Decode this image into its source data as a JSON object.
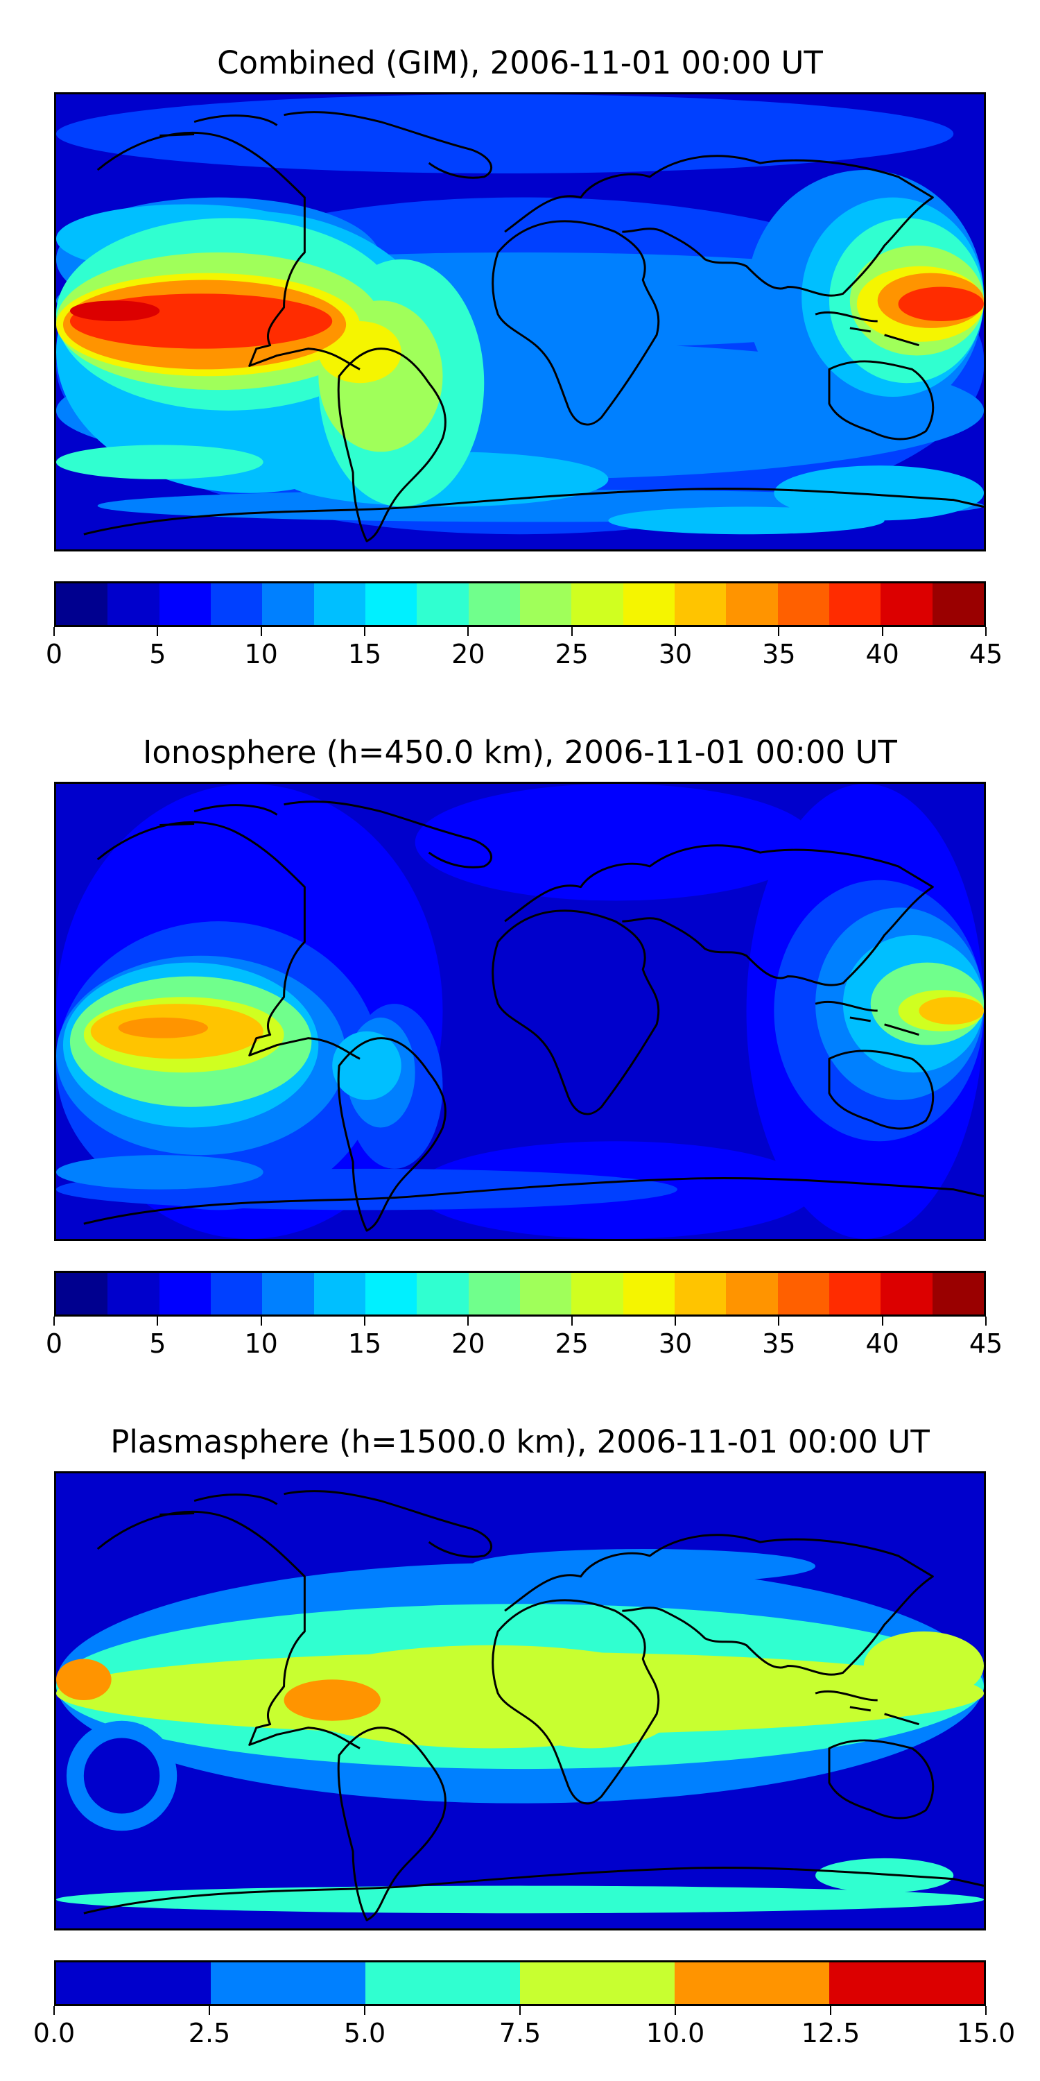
{
  "panels": [
    {
      "title": "Combined (GIM), 2006-11-01 00:00 UT",
      "colorbar_ticks": [
        "0",
        "5",
        "10",
        "15",
        "20",
        "25",
        "30",
        "35",
        "40",
        "45"
      ],
      "colorbar_colors": [
        "#00008f",
        "#0000cc",
        "#0000ff",
        "#0040ff",
        "#0080ff",
        "#00bfff",
        "#00f0ff",
        "#30ffd0",
        "#70ff8c",
        "#a0ff5a",
        "#d0ff20",
        "#f5f500",
        "#ffc400",
        "#ff9400",
        "#ff6000",
        "#ff2c00",
        "#dc0000",
        "#9a0000"
      ],
      "colorbar_range": [
        0,
        45
      ],
      "layers": [
        {
          "level": 7.5,
          "color": "#0040ff"
        },
        {
          "level": 10,
          "color": "#0080ff"
        },
        {
          "level": 15,
          "color": "#00bfff"
        },
        {
          "level": 20,
          "color": "#30ffd0"
        },
        {
          "level": 25,
          "color": "#a0ff5a"
        },
        {
          "level": 30,
          "color": "#f5f500"
        },
        {
          "level": 35,
          "color": "#ff9400"
        },
        {
          "level": 40,
          "color": "#ff2c00"
        },
        {
          "level": 42.5,
          "color": "#dc0000"
        }
      ]
    },
    {
      "title": "Ionosphere  (h=450.0 km), 2006-11-01 00:00 UT",
      "colorbar_ticks": [
        "0",
        "5",
        "10",
        "15",
        "20",
        "25",
        "30",
        "35",
        "40",
        "45"
      ],
      "colorbar_colors": [
        "#00008f",
        "#0000cc",
        "#0000ff",
        "#0040ff",
        "#0080ff",
        "#00bfff",
        "#00f0ff",
        "#30ffd0",
        "#70ff8c",
        "#a0ff5a",
        "#d0ff20",
        "#f5f500",
        "#ffc400",
        "#ff9400",
        "#ff6000",
        "#ff2c00",
        "#dc0000",
        "#9a0000"
      ],
      "colorbar_range": [
        0,
        45
      ],
      "layers": [
        {
          "level": 5,
          "color": "#0000ff"
        },
        {
          "level": 10,
          "color": "#0040ff"
        },
        {
          "level": 15,
          "color": "#0080ff"
        },
        {
          "level": 20,
          "color": "#00bfff"
        },
        {
          "level": 25,
          "color": "#70ff8c"
        },
        {
          "level": 30,
          "color": "#d0ff20"
        },
        {
          "level": 35,
          "color": "#ffc400"
        },
        {
          "level": 40,
          "color": "#ff9400"
        }
      ]
    },
    {
      "title": "Plasmasphere (h=1500.0 km), 2006-11-01 00:00 UT",
      "colorbar_ticks": [
        "0.0",
        "2.5",
        "5.0",
        "7.5",
        "10.0",
        "12.5",
        "15.0"
      ],
      "colorbar_colors": [
        "#0000cc",
        "#0080ff",
        "#30ffd0",
        "#c8ff30",
        "#ff9400",
        "#dc0000"
      ],
      "colorbar_range": [
        0,
        15
      ],
      "layers": [
        {
          "level": 2.5,
          "color": "#0080ff"
        },
        {
          "level": 5,
          "color": "#30ffd0"
        },
        {
          "level": 7.5,
          "color": "#c8ff30"
        },
        {
          "level": 10,
          "color": "#ff9400"
        }
      ]
    }
  ],
  "base_color": "#0000cc",
  "coastline_color": "#000000"
}
